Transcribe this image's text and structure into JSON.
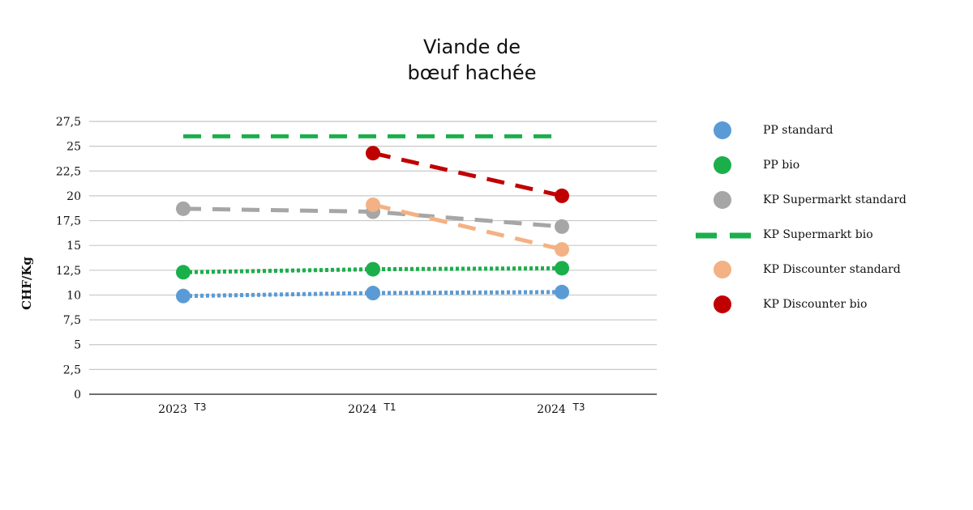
{
  "chart_data": {
    "type": "line",
    "title_lines": [
      "Viande de",
      "bœuf hachée"
    ],
    "ylabel": "CHF/Kg",
    "xlabel": "",
    "ylim": [
      0,
      27.5
    ],
    "yticks": [
      "0",
      "2,5",
      "5",
      "7,5",
      "10",
      "12,5",
      "15",
      "17,5",
      "20",
      "22,5",
      "25",
      "27,5"
    ],
    "grid": true,
    "legend_position": "right",
    "categories": [
      {
        "main": "2023",
        "sub": "T3"
      },
      {
        "main": "2024",
        "sub": "T1"
      },
      {
        "main": "2024",
        "sub": "T3"
      }
    ],
    "series": [
      {
        "name": "PP standard",
        "color": "#5b9bd5",
        "line_style": "dotted",
        "marker": true,
        "values": [
          9.9,
          10.2,
          10.3
        ]
      },
      {
        "name": "PP bio",
        "color": "#1aaf4b",
        "line_style": "dotted",
        "marker": true,
        "values": [
          12.3,
          12.6,
          12.7
        ]
      },
      {
        "name": "KP Supermarkt standard",
        "color": "#a6a6a6",
        "line_style": "dashed",
        "marker": true,
        "values": [
          18.7,
          18.4,
          16.9
        ]
      },
      {
        "name": "KP Supermarkt bio",
        "color": "#1aaf4b",
        "line_style": "dashed",
        "marker": false,
        "values": [
          26,
          26,
          26
        ]
      },
      {
        "name": "KP Discounter standard",
        "color": "#f4b183",
        "line_style": "dashed",
        "marker": true,
        "values": [
          null,
          19.1,
          14.6
        ]
      },
      {
        "name": "KP Discounter bio",
        "color": "#c00000",
        "line_style": "dashed",
        "marker": true,
        "values": [
          null,
          24.3,
          20.0
        ]
      }
    ]
  }
}
